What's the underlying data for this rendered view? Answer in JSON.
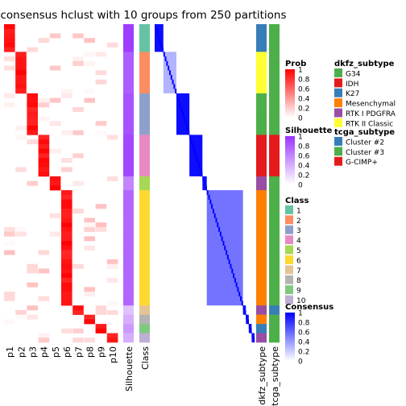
{
  "chart_data": {
    "type": "heatmap",
    "title": "consensus hclust with 10 groups from 250 partitions",
    "membership_columns": [
      "p1",
      "p2",
      "p3",
      "p4",
      "p5",
      "p6",
      "p7",
      "p8",
      "p9",
      "p10"
    ],
    "annotation_columns": [
      "Silhouette",
      "Class"
    ],
    "side_annotation_columns": [
      "dkfz_subtype",
      "tcga_subtype"
    ],
    "groups": [
      {
        "class": 1,
        "n": 6,
        "dominant_p": 1,
        "silhouette": 0.95
      },
      {
        "class": 2,
        "n": 9,
        "dominant_p": 2,
        "silhouette": 0.8
      },
      {
        "class": 3,
        "n": 9,
        "dominant_p": 3,
        "silhouette": 0.85
      },
      {
        "class": 4,
        "n": 9,
        "dominant_p": 4,
        "silhouette": 0.9
      },
      {
        "class": 5,
        "n": 3,
        "dominant_p": 5,
        "silhouette": 0.6
      },
      {
        "class": 6,
        "n": 25,
        "dominant_p": 6,
        "silhouette": 0.75
      },
      {
        "class": 7,
        "n": 2,
        "dominant_p": 7,
        "silhouette": 0.3
      },
      {
        "class": 8,
        "n": 2,
        "dominant_p": 8,
        "silhouette": 0.4
      },
      {
        "class": 9,
        "n": 2,
        "dominant_p": 9,
        "silhouette": 0.5
      },
      {
        "class": 10,
        "n": 2,
        "dominant_p": 10,
        "silhouette": 0.4
      }
    ],
    "legends": {
      "prob": {
        "title": "Prob",
        "ticks": [
          "1",
          "0.8",
          "0.6",
          "0.4",
          "0.2",
          "0"
        ],
        "color_low": "#ffffff",
        "color_high": "#ff0000"
      },
      "silhouette": {
        "title": "Silhouette",
        "ticks": [
          "1",
          "0.8",
          "0.6",
          "0.4",
          "0.2",
          "0"
        ],
        "color_low": "#ffffff",
        "color_high": "#9933ff"
      },
      "class": {
        "title": "Class",
        "labels": [
          "1",
          "2",
          "3",
          "4",
          "5",
          "6",
          "7",
          "8",
          "9",
          "10"
        ],
        "colors": [
          "#66c2a5",
          "#fc8d62",
          "#8da0cb",
          "#e78ac3",
          "#a6d854",
          "#ffd92f",
          "#e5c494",
          "#b3b3b3",
          "#7fc97f",
          "#beaed4"
        ]
      },
      "consensus": {
        "title": "Consensus",
        "ticks": [
          "1",
          "0.8",
          "0.6",
          "0.4",
          "0.2",
          "0"
        ],
        "color_low": "#ffffff",
        "color_high": "#0000ff"
      },
      "dkfz_subtype": {
        "title": "dkfz_subtype",
        "labels": [
          "G34",
          "IDH",
          "K27",
          "Mesenchymal",
          "RTK I PDGFRA",
          "RTK II Classic"
        ],
        "colors": [
          "#4daf4a",
          "#e41a1c",
          "#377eb8",
          "#ff7f00",
          "#984ea3",
          "#ffff33"
        ]
      },
      "tcga_subtype": {
        "title": "tcga_subtype",
        "labels": [
          "Cluster #2",
          "Cluster #3",
          "G-CIMP+"
        ],
        "colors": [
          "#377eb8",
          "#4daf4a",
          "#e41a1c"
        ]
      }
    }
  }
}
